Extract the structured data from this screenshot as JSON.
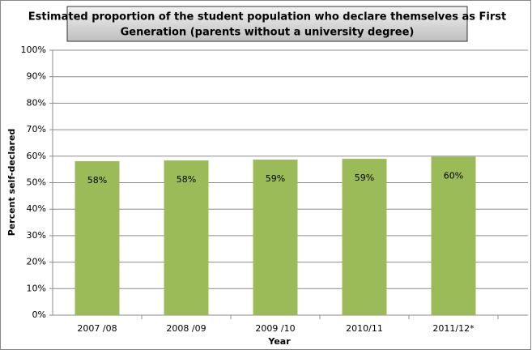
{
  "chart_data": {
    "type": "bar",
    "title": [
      "Estimated  proportion of the student population who declare themselves as First",
      "Generation (parents without a university degree)"
    ],
    "x_label": "Year",
    "y_label": "Percent self-declared",
    "categories": [
      "2007 /08",
      "2008 /09",
      "2009 /10",
      "2010/11",
      "2011/12*"
    ],
    "values": [
      58.1,
      58.4,
      58.7,
      59.0,
      59.8
    ],
    "value_labels": [
      "58%",
      "58%",
      "59%",
      "59%",
      "60%"
    ],
    "color": "#9bbb59",
    "ylim": [
      0,
      100
    ],
    "yticks": [
      {
        "value": 0,
        "label": "0%"
      },
      {
        "value": 10,
        "label": "10%"
      },
      {
        "value": 20,
        "label": "20%"
      },
      {
        "value": 30,
        "label": "30%"
      },
      {
        "value": 40,
        "label": "40%"
      },
      {
        "value": 50,
        "label": "50%"
      },
      {
        "value": 60,
        "label": "60%"
      },
      {
        "value": 70,
        "label": "70%"
      },
      {
        "value": 80,
        "label": "80%"
      },
      {
        "value": 90,
        "label": "90%"
      },
      {
        "value": 100,
        "label": "100%"
      }
    ],
    "grid": true
  }
}
